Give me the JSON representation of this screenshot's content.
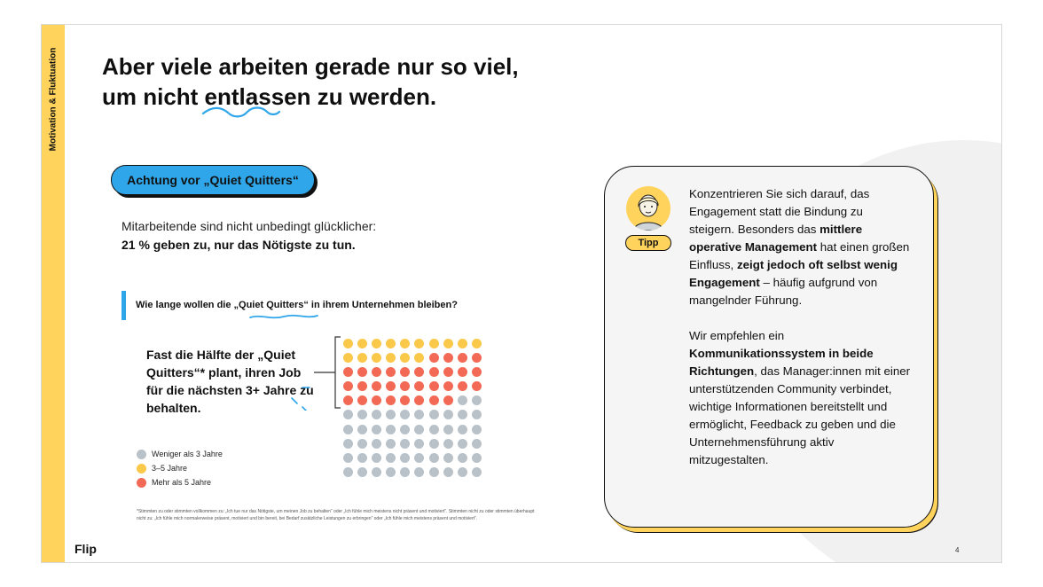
{
  "sidebar": {
    "label": "Motivation & Fluktuation"
  },
  "title": {
    "line1": "Aber viele arbeiten gerade nur so viel,",
    "line2": "um nicht entlassen zu werden."
  },
  "pill": {
    "label": "Achtung vor „Quiet Quitters“"
  },
  "intro": {
    "text": "Mitarbeitende sind nicht unbedingt glücklicher:",
    "bold": "21 % geben zu, nur das Nötigste zu tun."
  },
  "question": {
    "text": "Wie lange wollen die „Quiet Quitters“ in ihrem Unternehmen bleiben?"
  },
  "highlight": {
    "text": "Fast die Hälfte der „Quiet Quitters“* plant, ihren Job für die nächsten 3+ Jahre zu behalten."
  },
  "chart_data": {
    "type": "waffle",
    "total": 100,
    "rows": 10,
    "columns": 10,
    "series": [
      {
        "name": "3–5 Jahre",
        "value": 16,
        "color": "#fbc94a"
      },
      {
        "name": "Mehr als 5 Jahre",
        "value": 32,
        "color": "#f26a55"
      },
      {
        "name": "Weniger als 3 Jahre",
        "value": 52,
        "color": "#b9c2c9"
      }
    ]
  },
  "legend": [
    {
      "label": "Weniger als 3 Jahre",
      "color": "#b9c2c9"
    },
    {
      "label": "3–5 Jahre",
      "color": "#fbc94a"
    },
    {
      "label": "Mehr als 5 Jahre",
      "color": "#f26a55"
    }
  ],
  "footnote": "*Stimmten zu oder stimmten vollkommen zu: „Ich tue nur das Nötigste, um meinen Job zu behalten“ oder „Ich fühle mich meistens nicht präsent und motiviert“. Stimmten nicht zu oder stimmten überhaupt nicht zu: „Ich fühle mich normalerweise präsent, motiviert und bin bereit, bei Bedarf zusätzliche Leistungen zu erbringen“ oder „Ich fühle mich meistens präsent und motiviert“.",
  "tip": {
    "badge": "Tipp",
    "p1": [
      {
        "text": "Konzentrieren Sie sich darauf, das Engagement statt die Bindung zu steigern. Besonders das ",
        "bold": false
      },
      {
        "text": "mittlere operative Management",
        "bold": true
      },
      {
        "text": " hat einen großen Einfluss, ",
        "bold": false
      },
      {
        "text": "zeigt jedoch oft selbst wenig Engagement",
        "bold": true
      },
      {
        "text": " – häufig aufgrund von mangelnder Führung.",
        "bold": false
      }
    ],
    "p2": [
      {
        "text": "Wir empfehlen ein ",
        "bold": false
      },
      {
        "text": "Kommunikationssystem in beide Richtungen",
        "bold": true
      },
      {
        "text": ", das Manager:innen mit einer unterstützenden Community verbindet, wichtige Informationen bereitstellt und ermöglicht, Feedback zu geben und die Unternehmensführung aktiv mitzugestalten.",
        "bold": false
      }
    ]
  },
  "brand": "Flip",
  "page_number": "4",
  "colors": {
    "accent_yellow": "#ffd35c",
    "accent_blue": "#2fa6ea",
    "red": "#f26a55",
    "gray": "#b9c2c9"
  }
}
